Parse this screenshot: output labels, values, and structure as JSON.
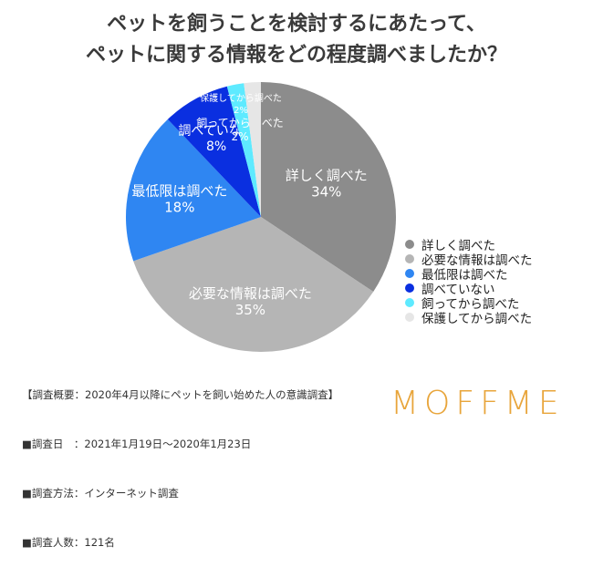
{
  "title": {
    "line1": "ペットを飼うことを検討するにあたって、",
    "line2": "ペットに関する情報をどの程度調べましたか？"
  },
  "chart_data": {
    "type": "pie",
    "slices": [
      {
        "label": "詳しく調べた",
        "value": 34,
        "display": "34%",
        "color": "#8c8c8c"
      },
      {
        "label": "必要な情報は調べた",
        "value": 35,
        "display": "35%",
        "color": "#b5b5b5"
      },
      {
        "label": "最低限は調べた",
        "value": 18,
        "display": "18%",
        "color": "#2f86f2"
      },
      {
        "label": "調べていない",
        "value": 8,
        "display": "8%",
        "color": "#0a2fe0"
      },
      {
        "label": "飼ってから調べた",
        "value": 2,
        "display": "2%",
        "color": "#5eeaff"
      },
      {
        "label": "保護してから調べた",
        "value": 2,
        "display": "2%",
        "color": "#e6e6e6"
      }
    ],
    "legend_position": "right"
  },
  "notes": [
    {
      "label": "【調査概要：",
      "value": "2020年4月以降にペットを飼い始めた人の意識調査】"
    },
    {
      "label": "■調査日　：",
      "value": "2021年1月19日〜2020年1月23日"
    },
    {
      "label": "■調査方法：",
      "value": "インターネット調査"
    },
    {
      "label": "■調査人数：",
      "value": "121名"
    }
  ],
  "logo": "MOFFME"
}
